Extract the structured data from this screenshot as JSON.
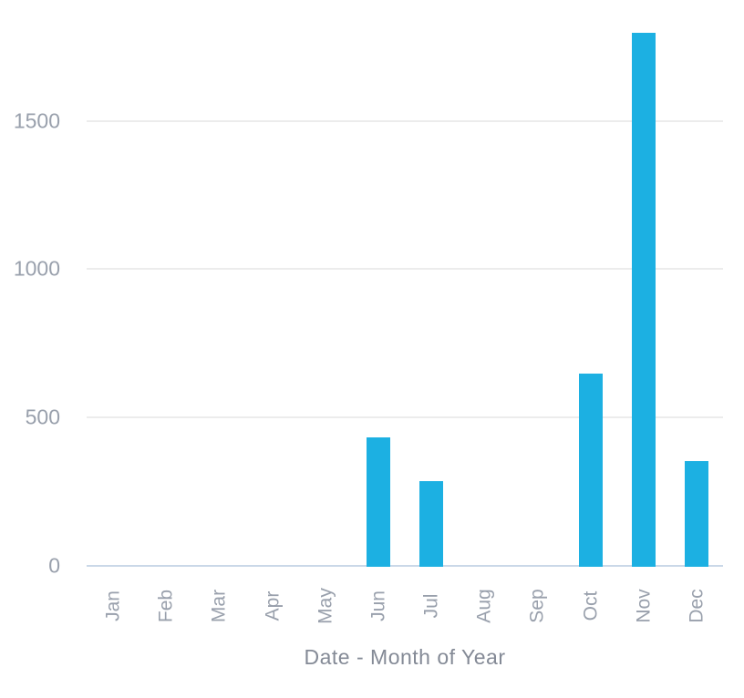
{
  "chart_data": {
    "type": "bar",
    "title": "",
    "xlabel": "Date - Month of Year",
    "ylabel": "",
    "categories": [
      "Jan",
      "Feb",
      "Mar",
      "Apr",
      "May",
      "Jun",
      "Jul",
      "Aug",
      "Sep",
      "Oct",
      "Nov",
      "Dec"
    ],
    "values": [
      0,
      0,
      0,
      0,
      0,
      435,
      290,
      0,
      0,
      650,
      1800,
      355
    ],
    "yticks": [
      0,
      500,
      1000,
      1500
    ],
    "ylim": [
      0,
      1880
    ],
    "grid": true,
    "legend": false,
    "colors": {
      "bar": "#1CB0E2",
      "axis_line": "#CAD8E8",
      "gridline": "#ECECEC",
      "tick_label": "#99A0AC",
      "axis_title": "#848A96"
    }
  }
}
